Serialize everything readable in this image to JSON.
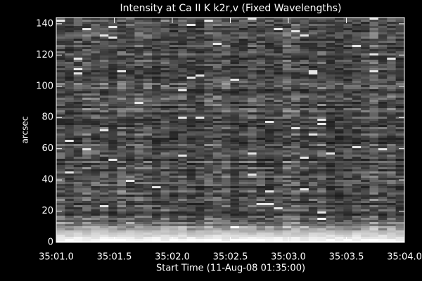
{
  "chart_data": {
    "type": "image",
    "title": "Intensity at Ca II K k2r,v (Fixed Wavelengths)",
    "x_label": "Start Time (11-Aug-08 01:35:00)",
    "y_label": "arcsec",
    "xlim": [
      1.0,
      4.0
    ],
    "xticks": [
      {
        "value": 1.0,
        "label": "35:01.0"
      },
      {
        "value": 1.5,
        "label": "35:01.5"
      },
      {
        "value": 2.0,
        "label": "35:02.0"
      },
      {
        "value": 2.5,
        "label": "35:02.5"
      },
      {
        "value": 3.0,
        "label": "35:03.0"
      },
      {
        "value": 3.5,
        "label": "35:03.5"
      },
      {
        "value": 4.0,
        "label": "35:04.0"
      }
    ],
    "ylim": [
      0,
      144
    ],
    "yticks": [
      0,
      20,
      40,
      60,
      80,
      100,
      120,
      140
    ],
    "colormap": "gray"
  }
}
